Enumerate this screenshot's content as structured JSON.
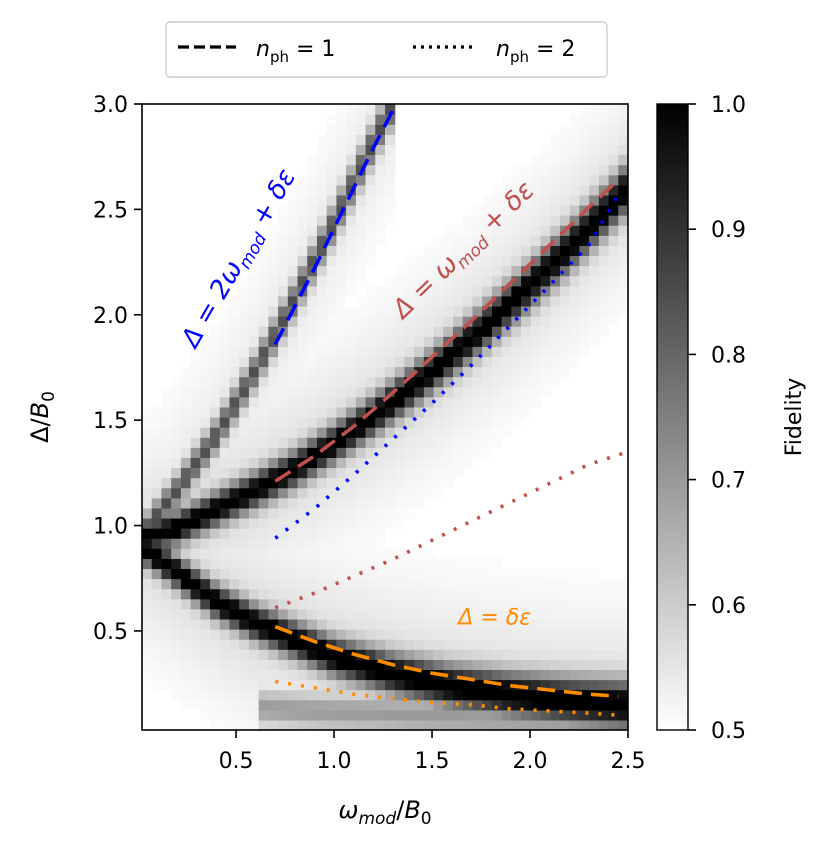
{
  "chart_data": {
    "type": "heatmap",
    "xlabel": "ω_mod / B_0",
    "ylabel": "Δ / B_0",
    "xlim": [
      0.02,
      2.5
    ],
    "ylim": [
      0.03,
      3.0
    ],
    "x_ticks": [
      0.5,
      1.0,
      1.5,
      2.0,
      2.5
    ],
    "x_tick_labels": [
      "0.5",
      "1.0",
      "1.5",
      "2.0",
      "2.5"
    ],
    "y_ticks": [
      0.5,
      1.0,
      1.5,
      2.0,
      2.5,
      3.0
    ],
    "y_tick_labels": [
      "0.5",
      "1.0",
      "1.5",
      "2.0",
      "2.5",
      "3.0"
    ],
    "colorbar": {
      "label": "Fidelity",
      "range": [
        0.5,
        1.0
      ],
      "ticks": [
        0.5,
        0.6,
        0.7,
        0.8,
        0.9,
        1.0
      ],
      "tick_labels": [
        "0.5",
        "0.6",
        "0.7",
        "0.8",
        "0.9",
        "1.0"
      ],
      "colormap": "gray_r"
    },
    "legend": {
      "placement": "above-top",
      "entries": [
        {
          "style": "dashed",
          "label_main": "n",
          "label_sub": "ph",
          "label_rest": " = 1"
        },
        {
          "style": "dotted",
          "label_main": "n",
          "label_sub": "ph",
          "label_rest": " = 2"
        }
      ]
    },
    "annotations": [
      {
        "id": "blue",
        "color": "#0000ff",
        "main": "Δ = 2ω",
        "sub": "mod",
        "rest": " + δε",
        "x": 0.55,
        "y": 2.25,
        "angle_deg": -60
      },
      {
        "id": "red",
        "color": "#c0504d",
        "main": "Δ = ω",
        "sub": "mod",
        "rest": " + δε",
        "x": 1.69,
        "y": 2.28,
        "angle_deg": -44
      },
      {
        "id": "orange",
        "color": "#ff8c00",
        "main": "Δ = δε",
        "sub": "",
        "rest": "",
        "x": 1.82,
        "y": 0.53,
        "angle_deg": 0
      }
    ],
    "series": [
      {
        "name": "blue n_ph=1",
        "color": "#0000ff",
        "style": "dashed",
        "x": [
          0.7,
          0.8,
          0.9,
          1.0,
          1.1,
          1.2,
          1.3
        ],
        "y": [
          1.86,
          2.04,
          2.22,
          2.41,
          2.6,
          2.79,
          2.97
        ]
      },
      {
        "name": "red n_ph=1",
        "color": "#c0504d",
        "style": "dashed",
        "x": [
          0.7,
          0.9,
          1.1,
          1.3,
          1.5,
          1.7,
          1.9,
          2.1,
          2.3,
          2.45
        ],
        "y": [
          1.21,
          1.33,
          1.47,
          1.63,
          1.8,
          1.97,
          2.15,
          2.33,
          2.51,
          2.64
        ]
      },
      {
        "name": "blue n_ph=2",
        "color": "#0000ff",
        "style": "dotted",
        "x": [
          0.7,
          0.9,
          1.1,
          1.3,
          1.5,
          1.7,
          1.9,
          2.1,
          2.3,
          2.45
        ],
        "y": [
          0.94,
          1.08,
          1.24,
          1.41,
          1.58,
          1.76,
          1.95,
          2.14,
          2.33,
          2.57
        ]
      },
      {
        "name": "red n_ph=2",
        "color": "#c0504d",
        "style": "dotted",
        "x": [
          0.7,
          0.9,
          1.1,
          1.3,
          1.5,
          1.7,
          1.9,
          2.1,
          2.3,
          2.5
        ],
        "y": [
          0.61,
          0.68,
          0.76,
          0.84,
          0.93,
          1.02,
          1.11,
          1.2,
          1.29,
          1.35
        ]
      },
      {
        "name": "orange n_ph=1",
        "color": "#ff8c00",
        "style": "dashed",
        "x": [
          0.7,
          0.9,
          1.1,
          1.3,
          1.5,
          1.7,
          1.9,
          2.1,
          2.3,
          2.45
        ],
        "y": [
          0.52,
          0.45,
          0.39,
          0.34,
          0.3,
          0.27,
          0.24,
          0.22,
          0.2,
          0.19
        ]
      },
      {
        "name": "orange n_ph=2",
        "color": "#ff8c00",
        "style": "dotted",
        "x": [
          0.7,
          0.9,
          1.1,
          1.3,
          1.5,
          1.7,
          1.9,
          2.1,
          2.3,
          2.45
        ],
        "y": [
          0.26,
          0.23,
          0.2,
          0.18,
          0.16,
          0.15,
          0.13,
          0.12,
          0.11,
          0.1
        ]
      }
    ],
    "heatmap_bands": [
      {
        "name": "main upper branch",
        "x": [
          0.02,
          0.2,
          0.4,
          0.6,
          0.8,
          1.0,
          1.2,
          1.4,
          1.6,
          1.8,
          2.0,
          2.2,
          2.4,
          2.5
        ],
        "y": [
          0.94,
          0.99,
          1.08,
          1.17,
          1.27,
          1.39,
          1.52,
          1.66,
          1.81,
          1.97,
          2.14,
          2.32,
          2.51,
          2.61
        ],
        "strength": 0.98
      },
      {
        "name": "upper diagonal branch",
        "x": [
          0.02,
          0.2,
          0.4,
          0.6,
          0.8,
          1.0,
          1.2,
          1.3
        ],
        "y": [
          0.96,
          1.17,
          1.43,
          1.74,
          2.08,
          2.44,
          2.82,
          3.0
        ],
        "strength": 0.62
      },
      {
        "name": "lower branch",
        "x": [
          0.02,
          0.2,
          0.4,
          0.6,
          0.8,
          1.0,
          1.3,
          1.6,
          1.9,
          2.2,
          2.5
        ],
        "y": [
          0.9,
          0.78,
          0.64,
          0.54,
          0.46,
          0.38,
          0.3,
          0.24,
          0.2,
          0.17,
          0.15
        ],
        "strength": 1.0
      },
      {
        "name": "bottom faint band",
        "x": [
          0.6,
          0.9,
          1.2,
          1.5,
          1.8,
          2.1,
          2.5
        ],
        "y": [
          0.14,
          0.12,
          0.11,
          0.1,
          0.09,
          0.08,
          0.07
        ],
        "strength": 0.35
      }
    ]
  }
}
